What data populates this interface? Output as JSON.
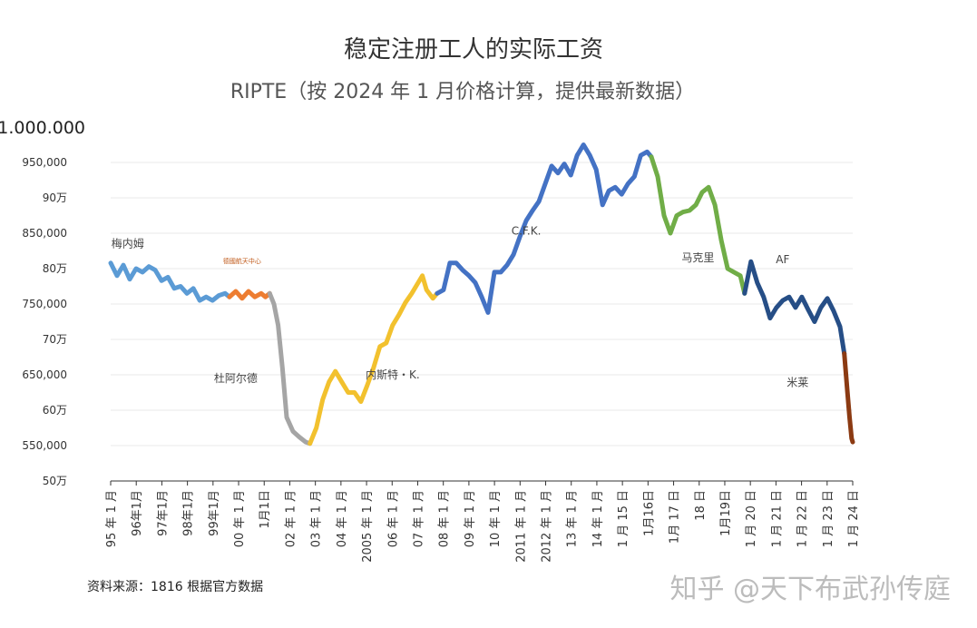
{
  "chart_data": {
    "type": "line",
    "title": "稳定注册工人的实际工资",
    "subtitle": "RIPTE（按 2024 年 1 月价格计算，提供最新数据）",
    "ylim": [
      500000,
      1000000
    ],
    "y_ticks": [
      {
        "value": 1000000,
        "label": "1.000.000"
      },
      {
        "value": 950000,
        "label": "950,000"
      },
      {
        "value": 900000,
        "label": "90万"
      },
      {
        "value": 850000,
        "label": "850,000"
      },
      {
        "value": 800000,
        "label": "80万"
      },
      {
        "value": 750000,
        "label": "750,000"
      },
      {
        "value": 700000,
        "label": "70万"
      },
      {
        "value": 650000,
        "label": "650,000"
      },
      {
        "value": 600000,
        "label": "60万"
      },
      {
        "value": 550000,
        "label": "550,000"
      },
      {
        "value": 500000,
        "label": "50万"
      }
    ],
    "x_ticks": [
      "95 年 1 月",
      "96年1月",
      "97年1月",
      "98年1月",
      "99年1月",
      "00 年 1 月",
      "1月1日",
      "02 年 1 月",
      "03 年 1 月",
      "04 年 1 月",
      "2005 年 1 月",
      "06 年 1 月",
      "07 年 1 月",
      "08 年 1 月",
      "09 年 1 月",
      "10 年 1 月",
      "2011 年 1 月",
      "2012 年 1 月",
      "13 年 1 月",
      "14 年 1 月",
      "1 月 15 日",
      "1月16日",
      "1月 17 日",
      "18 日",
      "1月19日",
      "1 月 20 日",
      "1 月 21 日",
      "1 月 22 日",
      "1 月 23 日",
      "1 月 24 日"
    ],
    "series": [
      {
        "name": "梅内姆",
        "color": "#5b9bd5",
        "points": [
          [
            1995.0,
            808000
          ],
          [
            1995.3,
            790000
          ],
          [
            1995.6,
            805000
          ],
          [
            1995.9,
            785000
          ],
          [
            1996.2,
            800000
          ],
          [
            1996.5,
            795000
          ],
          [
            1996.8,
            803000
          ],
          [
            1997.1,
            798000
          ],
          [
            1997.4,
            783000
          ],
          [
            1997.7,
            788000
          ],
          [
            1998.0,
            772000
          ],
          [
            1998.3,
            775000
          ],
          [
            1998.6,
            765000
          ],
          [
            1998.9,
            772000
          ],
          [
            1999.2,
            755000
          ],
          [
            1999.5,
            760000
          ],
          [
            1999.8,
            755000
          ],
          [
            2000.1,
            762000
          ],
          [
            2000.4,
            765000
          ],
          [
            2000.6,
            760000
          ]
        ]
      },
      {
        "name": "德國航天中心",
        "color": "#ed7d31",
        "points": [
          [
            2000.6,
            760000
          ],
          [
            2000.9,
            768000
          ],
          [
            2001.2,
            758000
          ],
          [
            2001.5,
            768000
          ],
          [
            2001.8,
            760000
          ],
          [
            2002.1,
            765000
          ],
          [
            2002.3,
            760000
          ],
          [
            2002.5,
            765000
          ]
        ]
      },
      {
        "name": "杜阿尔德",
        "color": "#a5a5a5",
        "points": [
          [
            2002.5,
            765000
          ],
          [
            2002.7,
            750000
          ],
          [
            2002.9,
            720000
          ],
          [
            2003.1,
            660000
          ],
          [
            2003.3,
            590000
          ],
          [
            2003.6,
            570000
          ],
          [
            2003.9,
            562000
          ],
          [
            2004.2,
            555000
          ],
          [
            2004.4,
            553000
          ]
        ]
      },
      {
        "name": "内斯特 · K.",
        "color": "#f2c12e",
        "points": [
          [
            2004.4,
            553000
          ],
          [
            2004.7,
            575000
          ],
          [
            2005.0,
            615000
          ],
          [
            2005.3,
            640000
          ],
          [
            2005.6,
            655000
          ],
          [
            2005.9,
            640000
          ],
          [
            2006.2,
            625000
          ],
          [
            2006.5,
            625000
          ],
          [
            2006.8,
            612000
          ],
          [
            2007.1,
            635000
          ],
          [
            2007.4,
            660000
          ],
          [
            2007.7,
            690000
          ],
          [
            2008.0,
            695000
          ],
          [
            2008.3,
            720000
          ],
          [
            2008.6,
            735000
          ],
          [
            2008.9,
            752000
          ],
          [
            2009.2,
            765000
          ],
          [
            2009.5,
            780000
          ],
          [
            2009.7,
            790000
          ],
          [
            2009.9,
            770000
          ],
          [
            2010.2,
            758000
          ],
          [
            2010.4,
            765000
          ]
        ]
      },
      {
        "name": "C.F.K.",
        "color": "#4472c4",
        "points": [
          [
            2010.4,
            765000
          ],
          [
            2010.7,
            770000
          ],
          [
            2011.0,
            808000
          ],
          [
            2011.3,
            808000
          ],
          [
            2011.6,
            798000
          ],
          [
            2011.9,
            790000
          ],
          [
            2012.2,
            780000
          ],
          [
            2012.5,
            760000
          ],
          [
            2012.8,
            738000
          ],
          [
            2013.1,
            795000
          ],
          [
            2013.4,
            795000
          ],
          [
            2013.7,
            805000
          ],
          [
            2014.0,
            820000
          ],
          [
            2014.3,
            845000
          ],
          [
            2014.6,
            868000
          ],
          [
            2014.9,
            882000
          ],
          [
            2015.2,
            895000
          ],
          [
            2015.5,
            920000
          ],
          [
            2015.8,
            945000
          ],
          [
            2016.1,
            935000
          ],
          [
            2016.4,
            948000
          ],
          [
            2016.7,
            932000
          ],
          [
            2017.0,
            960000
          ],
          [
            2017.3,
            975000
          ],
          [
            2017.6,
            960000
          ],
          [
            2017.9,
            940000
          ],
          [
            2018.2,
            890000
          ],
          [
            2018.5,
            910000
          ],
          [
            2018.8,
            915000
          ],
          [
            2019.1,
            905000
          ],
          [
            2019.4,
            920000
          ],
          [
            2019.7,
            930000
          ],
          [
            2020.0,
            960000
          ],
          [
            2020.3,
            965000
          ],
          [
            2020.5,
            958000
          ]
        ]
      },
      {
        "name": "马克里",
        "color": "#70ad47",
        "points": [
          [
            2020.5,
            958000
          ],
          [
            2020.8,
            930000
          ],
          [
            2021.1,
            875000
          ],
          [
            2021.4,
            850000
          ],
          [
            2021.7,
            875000
          ],
          [
            2022.0,
            880000
          ],
          [
            2022.3,
            882000
          ],
          [
            2022.6,
            890000
          ],
          [
            2022.9,
            908000
          ],
          [
            2023.2,
            915000
          ],
          [
            2023.5,
            890000
          ],
          [
            2023.8,
            840000
          ],
          [
            2024.1,
            800000
          ],
          [
            2024.4,
            795000
          ],
          [
            2024.7,
            790000
          ],
          [
            2024.9,
            765000
          ]
        ]
      },
      {
        "name": "AF",
        "color": "#264e86",
        "points": [
          [
            2024.9,
            765000
          ],
          [
            2025.2,
            810000
          ],
          [
            2025.5,
            780000
          ],
          [
            2025.8,
            760000
          ],
          [
            2026.1,
            730000
          ],
          [
            2026.4,
            745000
          ],
          [
            2026.7,
            755000
          ],
          [
            2027.0,
            760000
          ],
          [
            2027.3,
            745000
          ],
          [
            2027.6,
            760000
          ],
          [
            2027.9,
            742000
          ],
          [
            2028.2,
            725000
          ],
          [
            2028.5,
            745000
          ],
          [
            2028.8,
            758000
          ],
          [
            2029.1,
            740000
          ],
          [
            2029.4,
            718000
          ],
          [
            2029.6,
            680000
          ]
        ]
      },
      {
        "name": "米莱",
        "color": "#8b3a12",
        "points": [
          [
            2029.6,
            680000
          ],
          [
            2029.75,
            625000
          ],
          [
            2029.85,
            590000
          ],
          [
            2029.95,
            560000
          ],
          [
            2030.0,
            555000
          ]
        ]
      }
    ],
    "annotations": [
      {
        "text": "梅内姆",
        "x": 1995.8,
        "y": 830000
      },
      {
        "text": "德國航天中心",
        "x": 2001.2,
        "y": 808000
      },
      {
        "text": "杜阿尔德",
        "x": 2000.9,
        "y": 640000
      },
      {
        "text": "内斯特・K.",
        "x": 2008.3,
        "y": 645000
      },
      {
        "text": "C.F.K.",
        "x": 2014.6,
        "y": 848000
      },
      {
        "text": "马克里",
        "x": 2022.7,
        "y": 810000
      },
      {
        "text": "AF",
        "x": 2026.7,
        "y": 808000
      },
      {
        "text": "米莱",
        "x": 2027.4,
        "y": 634000
      }
    ],
    "grid": true,
    "legend": "none"
  },
  "source": "资料来源：1816 根据官方数据",
  "watermark": "知乎 @天下布武孙传庭"
}
